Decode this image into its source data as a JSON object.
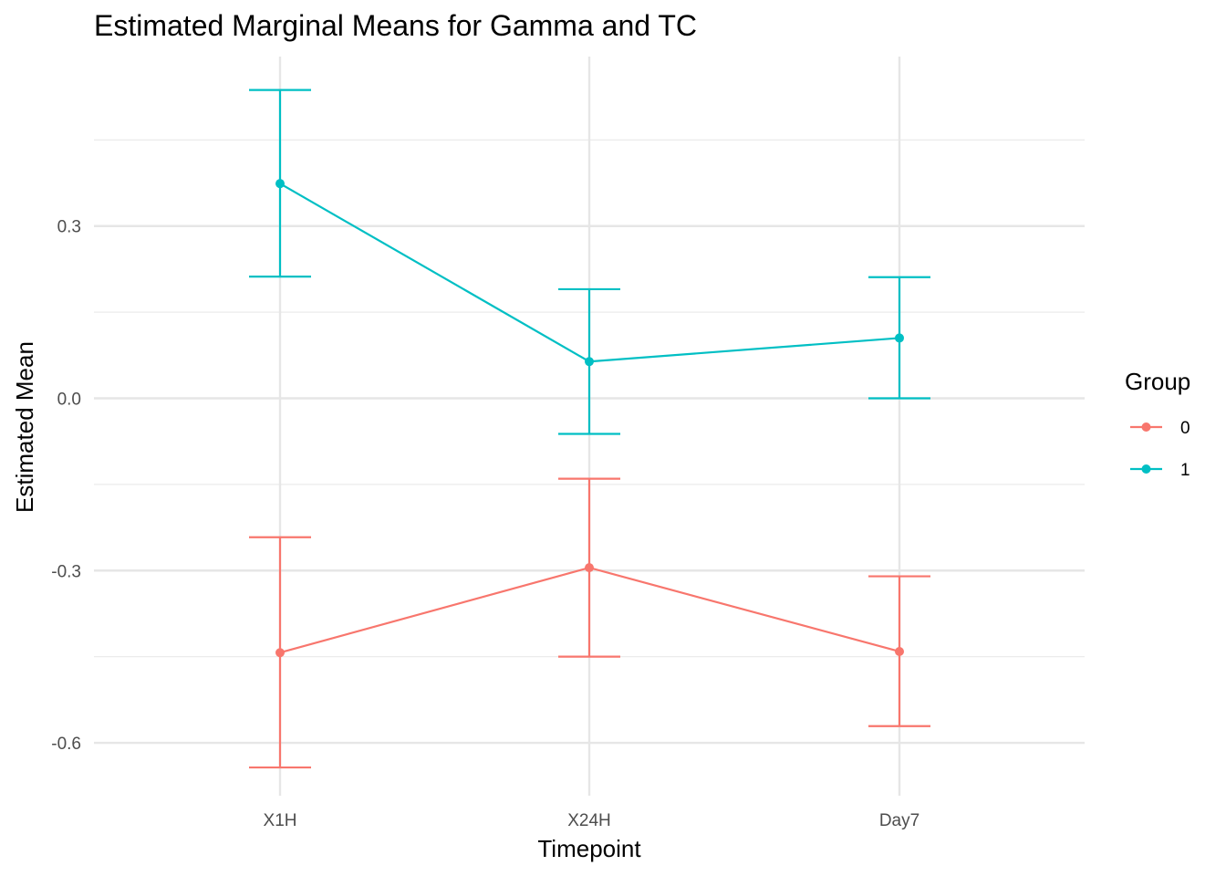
{
  "chart_data": {
    "type": "line",
    "title": "Estimated Marginal Means for Gamma and TC",
    "xlabel": "Timepoint",
    "ylabel": "Estimated Mean",
    "categories": [
      "X1H",
      "X24H",
      "Day7"
    ],
    "ylim": [
      -0.69,
      0.6
    ],
    "yticks": [
      -0.6,
      -0.3,
      0.0,
      0.3
    ],
    "ytick_labels": [
      "-0.6",
      "-0.3",
      "0.0",
      "0.3"
    ],
    "grid": true,
    "legend": {
      "title": "Group",
      "position": "right"
    },
    "series": [
      {
        "name": "0",
        "color": "#F8766D",
        "values": [
          -0.443,
          -0.295,
          -0.441
        ],
        "lower": [
          -0.643,
          -0.45,
          -0.571
        ],
        "upper": [
          -0.242,
          -0.14,
          -0.31
        ]
      },
      {
        "name": "1",
        "color": "#00BFC4",
        "values": [
          0.374,
          0.064,
          0.105
        ],
        "lower": [
          0.212,
          -0.062,
          0.0
        ],
        "upper": [
          0.537,
          0.19,
          0.211
        ]
      }
    ]
  }
}
